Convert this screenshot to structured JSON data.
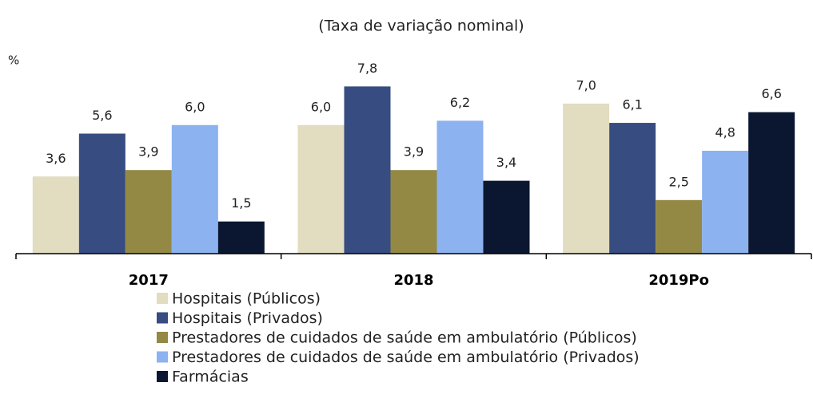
{
  "chart_data": {
    "type": "bar",
    "title": "(Taxa de variação nominal)",
    "y_label": "%",
    "categories": [
      "2017",
      "2018",
      "2019Po"
    ],
    "ylim": [
      0,
      8
    ],
    "series": [
      {
        "name": "Hospitais (Públicos)",
        "color": "#e2dcc0",
        "values": [
          3.6,
          6.0,
          7.0
        ],
        "value_labels": [
          "3,6",
          "6,0",
          "7,0"
        ]
      },
      {
        "name": "Hospitais (Privados)",
        "color": "#374c80",
        "values": [
          5.6,
          7.8,
          6.1
        ],
        "value_labels": [
          "5,6",
          "7,8",
          "6,1"
        ]
      },
      {
        "name": "Prestadores de cuidados de saúde em ambulatório (Públicos)",
        "color": "#948845",
        "values": [
          3.9,
          3.9,
          2.5
        ],
        "value_labels": [
          "3,9",
          "3,9",
          "2,5"
        ]
      },
      {
        "name": "Prestadores de cuidados de saúde em ambulatório (Privados)",
        "color": "#8cb2f0",
        "values": [
          6.0,
          6.2,
          4.8
        ],
        "value_labels": [
          "6,0",
          "6,2",
          "4,8"
        ]
      },
      {
        "name": "Farmácias",
        "color": "#0b1630",
        "values": [
          1.5,
          3.4,
          6.6
        ],
        "value_labels": [
          "1,5",
          "3,4",
          "6,6"
        ]
      }
    ]
  }
}
